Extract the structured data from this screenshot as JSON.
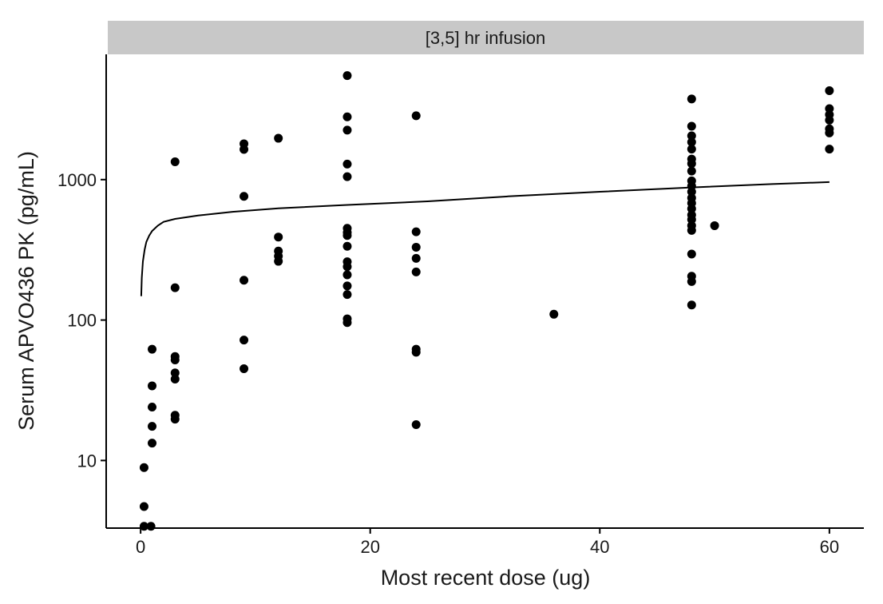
{
  "chart_data": {
    "type": "scatter",
    "panel_title": "[3,5] hr infusion",
    "xlabel": "Most recent dose (ug)",
    "ylabel": "Serum APVO436 PK (pg/mL)",
    "x_scale": "linear",
    "y_scale": "log10",
    "xlim": [
      -3,
      63
    ],
    "ylim": [
      3.3,
      7800
    ],
    "x_ticks": [
      0,
      20,
      40,
      60
    ],
    "y_ticks": [
      10,
      100,
      1000
    ],
    "x_tick_labels": [
      "0",
      "20",
      "40",
      "60"
    ],
    "y_tick_labels": [
      "10",
      "100",
      "1000"
    ],
    "grid": false,
    "colors": {
      "points": "#000000",
      "fit_line": "#000000",
      "strip": "#c8c8c8"
    },
    "series": [
      {
        "kind": "points",
        "points": [
          [
            0.3,
            8.9
          ],
          [
            0.3,
            4.7
          ],
          [
            0.3,
            3.4
          ],
          [
            0.9,
            3.4
          ],
          [
            1,
            62
          ],
          [
            1,
            34
          ],
          [
            1,
            24
          ],
          [
            1,
            17.5
          ],
          [
            1,
            13.3
          ],
          [
            3,
            1340
          ],
          [
            3,
            170
          ],
          [
            3,
            55
          ],
          [
            3,
            52
          ],
          [
            3,
            42
          ],
          [
            3,
            38
          ],
          [
            3,
            21
          ],
          [
            3,
            19.7
          ],
          [
            9,
            1800
          ],
          [
            9,
            1640
          ],
          [
            9,
            760
          ],
          [
            9,
            192
          ],
          [
            9,
            72
          ],
          [
            9,
            45
          ],
          [
            12,
            1970
          ],
          [
            12,
            390
          ],
          [
            12,
            310
          ],
          [
            12,
            285
          ],
          [
            12,
            262
          ],
          [
            18,
            5500
          ],
          [
            18,
            2800
          ],
          [
            18,
            2250
          ],
          [
            18,
            1290
          ],
          [
            18,
            1050
          ],
          [
            18,
            450
          ],
          [
            18,
            420
          ],
          [
            18,
            400
          ],
          [
            18,
            335
          ],
          [
            18,
            260
          ],
          [
            18,
            240
          ],
          [
            18,
            210
          ],
          [
            18,
            175
          ],
          [
            18,
            152
          ],
          [
            18,
            102
          ],
          [
            18,
            96
          ],
          [
            24,
            2850
          ],
          [
            24,
            425
          ],
          [
            24,
            330
          ],
          [
            24,
            275
          ],
          [
            24,
            220
          ],
          [
            24,
            62
          ],
          [
            24,
            59
          ],
          [
            24,
            18
          ],
          [
            36,
            110
          ],
          [
            48,
            3750
          ],
          [
            48,
            2400
          ],
          [
            48,
            2050
          ],
          [
            48,
            1850
          ],
          [
            48,
            1650
          ],
          [
            48,
            1400
          ],
          [
            48,
            1300
          ],
          [
            48,
            1150
          ],
          [
            48,
            980
          ],
          [
            48,
            900
          ],
          [
            48,
            820
          ],
          [
            48,
            740
          ],
          [
            48,
            680
          ],
          [
            48,
            620
          ],
          [
            48,
            560
          ],
          [
            48,
            520
          ],
          [
            48,
            470
          ],
          [
            48,
            435
          ],
          [
            48,
            295
          ],
          [
            48,
            205
          ],
          [
            48,
            188
          ],
          [
            48,
            128
          ],
          [
            50,
            470
          ],
          [
            60,
            4300
          ],
          [
            60,
            3200
          ],
          [
            60,
            2900
          ],
          [
            60,
            2650
          ],
          [
            60,
            2300
          ],
          [
            60,
            2150
          ],
          [
            60,
            1650
          ]
        ]
      },
      {
        "kind": "fit_line",
        "points": [
          [
            0.05,
            148
          ],
          [
            0.1,
            200
          ],
          [
            0.2,
            262
          ],
          [
            0.35,
            318
          ],
          [
            0.5,
            360
          ],
          [
            0.75,
            400
          ],
          [
            1,
            430
          ],
          [
            1.5,
            470
          ],
          [
            2,
            500
          ],
          [
            3,
            525
          ],
          [
            5,
            555
          ],
          [
            8,
            590
          ],
          [
            12,
            625
          ],
          [
            18,
            660
          ],
          [
            25,
            700
          ],
          [
            32,
            760
          ],
          [
            40,
            820
          ],
          [
            48,
            880
          ],
          [
            55,
            930
          ],
          [
            60,
            960
          ]
        ]
      }
    ]
  }
}
